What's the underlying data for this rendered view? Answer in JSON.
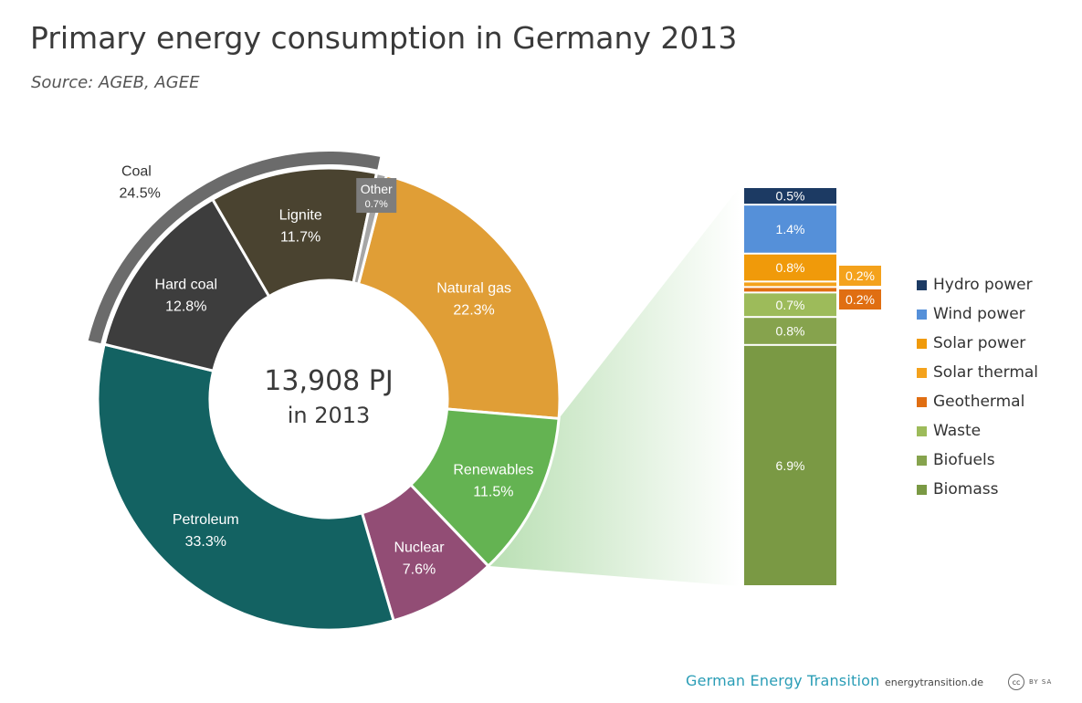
{
  "title": "Primary energy consumption in Germany 2013",
  "subtitle": "Source: AGEB, AGEE",
  "footer": {
    "brand": "German Energy Transition",
    "site": "energytransition.de",
    "license_badge": "cc",
    "license_text": "BY SA"
  },
  "chart_data": [
    {
      "type": "pie",
      "variant": "donut",
      "center_label": [
        "13,908 PJ",
        "in 2013"
      ],
      "slices": [
        {
          "label": "Natural gas",
          "value": 22.3,
          "display": "22.3%",
          "color": "#e09e36"
        },
        {
          "label": "Renewables",
          "value": 11.5,
          "display": "11.5%",
          "color": "#64b352"
        },
        {
          "label": "Nuclear",
          "value": 7.6,
          "display": "7.6%",
          "color": "#924d75"
        },
        {
          "label": "Petroleum",
          "value": 33.3,
          "display": "33.3%",
          "color": "#136262"
        },
        {
          "label": "Hard coal",
          "value": 12.8,
          "display": "12.8%",
          "color": "#3d3d3d"
        },
        {
          "label": "Lignite",
          "value": 11.7,
          "display": "11.7%",
          "color": "#4a4330"
        },
        {
          "label": "Other",
          "value": 0.7,
          "display": "0.7%",
          "color": "#a6a6a6"
        }
      ],
      "group": {
        "label": "Coal",
        "display": "24.5%",
        "members": [
          "Hard coal",
          "Lignite"
        ],
        "color": "#6b6b6b"
      }
    },
    {
      "type": "bar",
      "variant": "stacked",
      "breakdown_of": "Renewables",
      "series": [
        {
          "name": "Hydro power",
          "value": 0.5,
          "display": "0.5%",
          "color": "#1c3a63"
        },
        {
          "name": "Wind power",
          "value": 1.4,
          "display": "1.4%",
          "color": "#5590d9"
        },
        {
          "name": "Solar power",
          "value": 0.8,
          "display": "0.8%",
          "color": "#f09a0a"
        },
        {
          "name": "Solar thermal",
          "value": 0.2,
          "display": "0.2%",
          "color": "#f4a21c"
        },
        {
          "name": "Geothermal",
          "value": 0.2,
          "display": "0.2%",
          "color": "#e06e12"
        },
        {
          "name": "Waste",
          "value": 0.7,
          "display": "0.7%",
          "color": "#9dbb5a"
        },
        {
          "name": "Biofuels",
          "value": 0.8,
          "display": "0.8%",
          "color": "#86a34d"
        },
        {
          "name": "Biomass",
          "value": 6.9,
          "display": "6.9%",
          "color": "#7a9944"
        }
      ]
    }
  ]
}
